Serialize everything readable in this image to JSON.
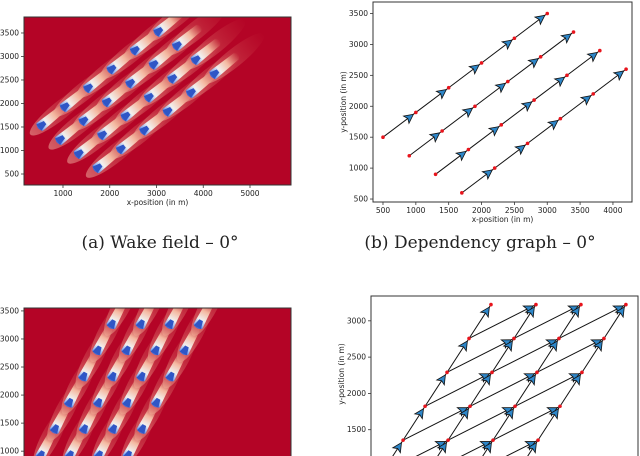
{
  "captions": {
    "a": "(a) Wake field – 0°",
    "b": "(b) Dependency graph – 0°"
  },
  "colors": {
    "background_field": "#b40426",
    "wake_core": "#3b6fd6",
    "wake_mid": "#f3c7b1",
    "node": "#e8141c",
    "arrow_fill": "#2e86c8"
  },
  "chart_data": [
    {
      "id": "wake-0",
      "type": "heatmap",
      "title": "",
      "xlabel": "x-position (in m)",
      "ylabel": "",
      "xticks": [
        1000,
        2000,
        3000,
        4000,
        5000
      ],
      "yticks": [
        500,
        1000,
        1500,
        2000,
        2500,
        3000,
        3500
      ],
      "xlim": [
        166,
        5877
      ],
      "ylim": [
        266,
        3840
      ],
      "wind_vector": [
        500,
        400
      ],
      "turbine_rows": [
        {
          "start": [
            500,
            1500
          ]
        },
        {
          "start": [
            900,
            1200
          ]
        },
        {
          "start": [
            1300,
            900
          ]
        },
        {
          "start": [
            1700,
            600
          ]
        }
      ],
      "row_step": [
        500,
        400
      ],
      "per_row": 6
    },
    {
      "id": "graph-0",
      "type": "scatter",
      "title": "",
      "xlabel": "x-position (in m)",
      "ylabel": "y-position (in m)",
      "xticks": [
        500,
        1000,
        1500,
        2000,
        2500,
        3000,
        3500,
        4000
      ],
      "yticks": [
        500,
        1000,
        1500,
        2000,
        2500,
        3000,
        3500
      ],
      "xlim": [
        348,
        4290
      ],
      "ylim": [
        452,
        3686
      ],
      "turbine_rows": [
        {
          "start": [
            500,
            1500
          ]
        },
        {
          "start": [
            900,
            1200
          ]
        },
        {
          "start": [
            1300,
            900
          ]
        },
        {
          "start": [
            1700,
            600
          ]
        }
      ],
      "row_step": [
        500,
        400
      ],
      "per_row": 6
    },
    {
      "id": "wake-rot",
      "type": "heatmap",
      "xlabel": "",
      "ylabel": "",
      "yticks": [
        1000,
        1500,
        2000,
        2500,
        3000,
        3500
      ],
      "xlim": [
        -20,
        6340
      ],
      "ylim": [
        700,
        3552
      ],
      "grid_origin": [
        2046,
        3224
      ],
      "col_step": [
        692,
        0
      ],
      "row_step": [
        -338,
        -467
      ],
      "rows": 6,
      "cols": 4
    },
    {
      "id": "graph-rot",
      "type": "scatter",
      "ylabel": "y-position (in m)",
      "yticks": [
        1500,
        2000,
        2500,
        3000
      ],
      "xlim": [
        200,
        4308
      ],
      "ylim": [
        1000,
        3342
      ],
      "grid_origin": [
        2046,
        3224
      ],
      "col_step": [
        692,
        0
      ],
      "row_step": [
        -338,
        -467
      ],
      "rows": 6,
      "cols": 4
    }
  ]
}
